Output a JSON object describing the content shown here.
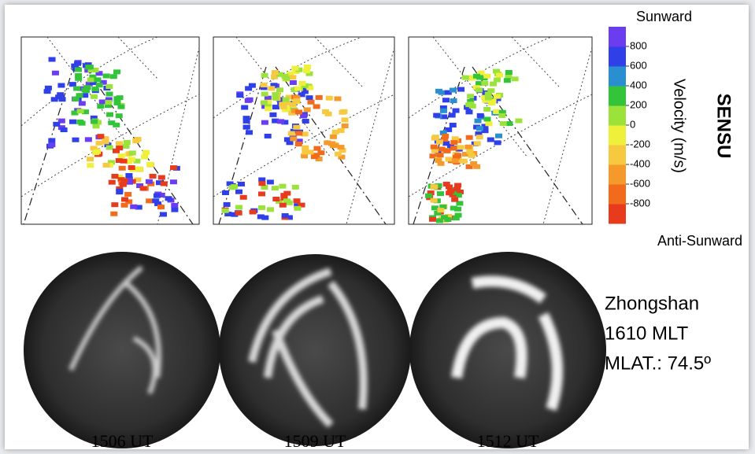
{
  "colorbar": {
    "top_label": "Sunward",
    "bottom_label": "Anti-Sunward",
    "title": "Velocity (m/s)",
    "lim": [
      -1000,
      1000
    ],
    "ticks": [
      800,
      600,
      400,
      200,
      0,
      -200,
      -400,
      -600,
      -800
    ],
    "colors": [
      "#e83a1c",
      "#f26b1d",
      "#f59a2a",
      "#f7c940",
      "#eef03a",
      "#9be23a",
      "#33c43a",
      "#2a8fd0",
      "#3040e8",
      "#6a3df0"
    ]
  },
  "radar": "SENSU",
  "captions": [
    "1506 UT",
    "1509 UT",
    "1512 UT"
  ],
  "station": [
    "Zhongshan",
    "1610 MLT",
    "MLAT.: 74.5º"
  ]
}
